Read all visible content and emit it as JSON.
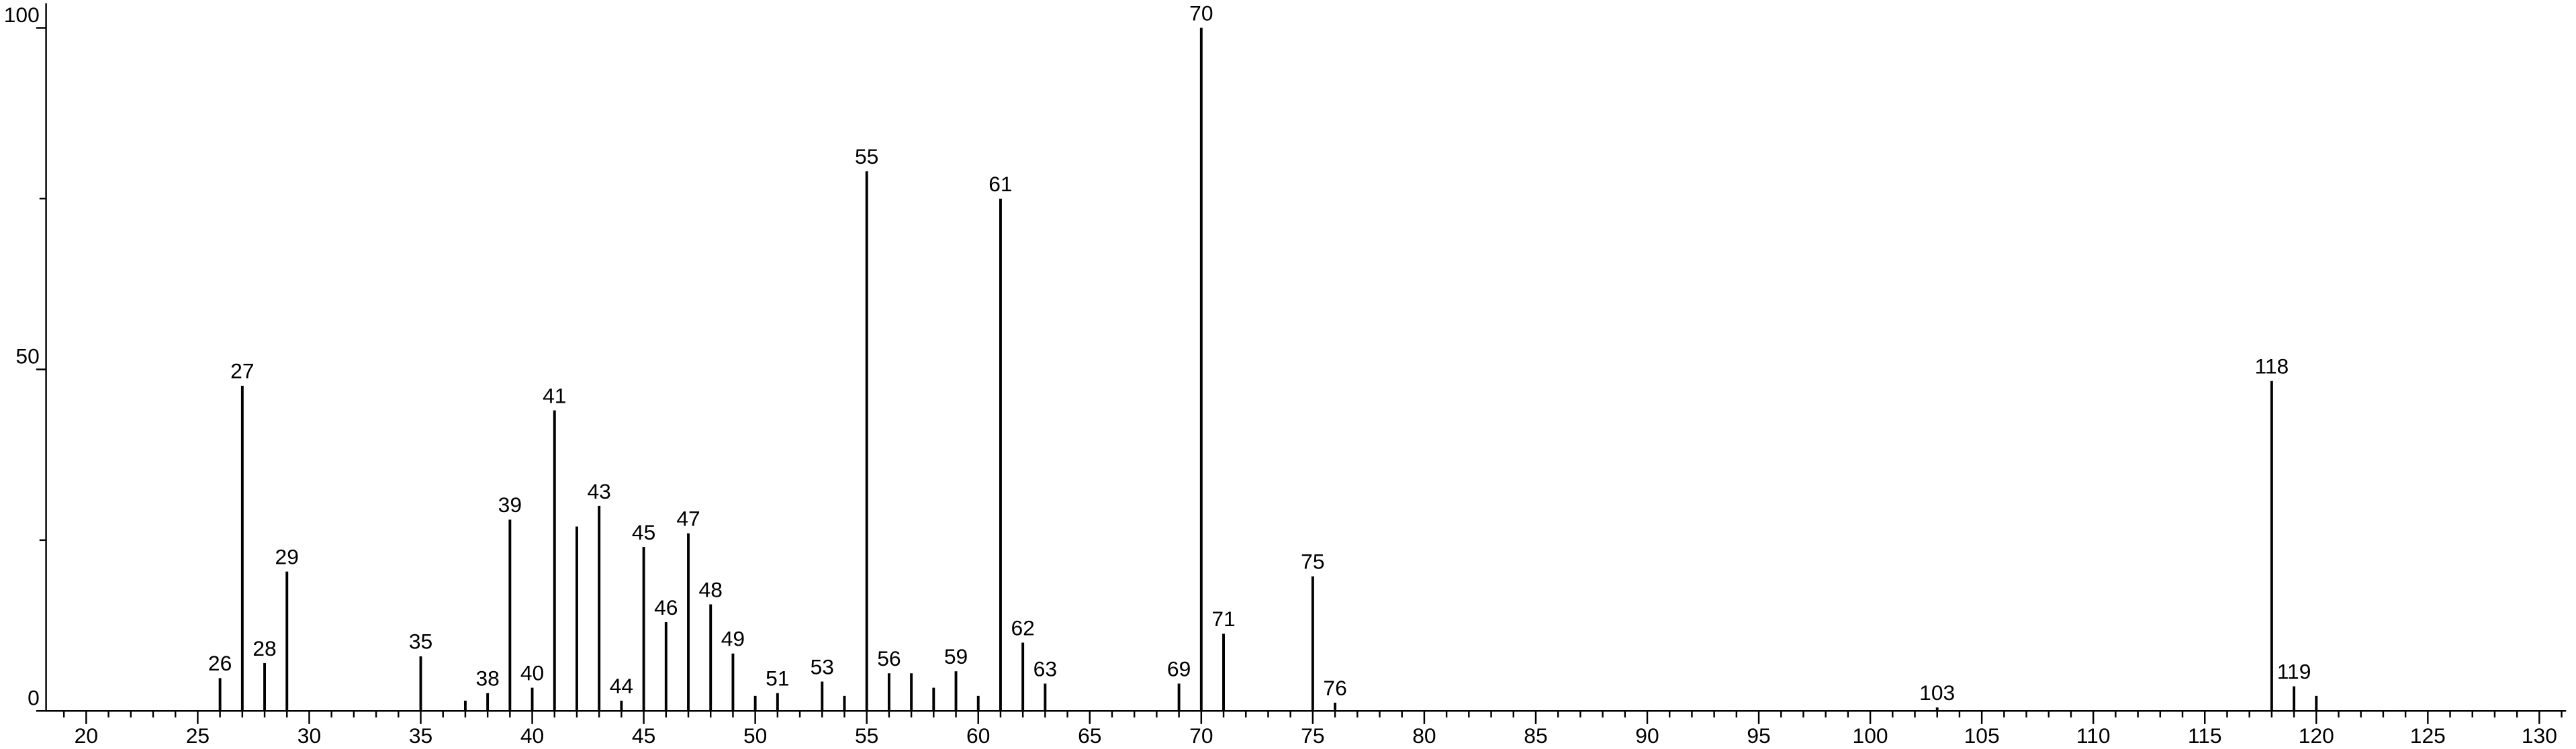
{
  "chart_data": {
    "type": "stem",
    "x": [
      26,
      27,
      28,
      29,
      35,
      37,
      38,
      39,
      40,
      41,
      42,
      43,
      44,
      45,
      46,
      47,
      48,
      49,
      50,
      51,
      53,
      54,
      55,
      56,
      57,
      58,
      59,
      60,
      61,
      62,
      63,
      69,
      70,
      71,
      75,
      76,
      103,
      118,
      119,
      120
    ],
    "values": [
      4.8,
      47.6,
      7,
      20.4,
      8,
      1.5,
      2.6,
      28,
      3.4,
      44,
      27,
      30,
      1.5,
      24,
      13,
      26,
      15.6,
      8.4,
      2.2,
      2.6,
      4.3,
      2.2,
      79,
      5.5,
      5.5,
      3.4,
      5.8,
      2.2,
      75,
      10,
      4,
      4,
      100,
      11.3,
      19.7,
      1.2,
      0.5,
      48.3,
      3.6,
      2.2
    ],
    "peak_labels": [
      "26",
      "27",
      "28",
      "29",
      "35",
      null,
      "38",
      "39",
      "40",
      "41",
      null,
      "43",
      "44",
      "45",
      "46",
      "47",
      "48",
      "49",
      null,
      "51",
      "53",
      null,
      "55",
      "56",
      null,
      null,
      "59",
      null,
      "61",
      "62",
      "63",
      "69",
      "70",
      "71",
      "75",
      "76",
      "103",
      "118",
      "119",
      null
    ],
    "color": "#000000",
    "xlim": [
      18.2,
      131.2
    ],
    "xticks": [
      20,
      25,
      30,
      35,
      40,
      45,
      50,
      55,
      60,
      65,
      70,
      75,
      80,
      85,
      90,
      95,
      100,
      105,
      110,
      115,
      120,
      125,
      130
    ],
    "xminorticks": [
      19,
      21,
      22,
      23,
      24,
      26,
      27,
      28,
      29,
      31,
      32,
      33,
      34,
      36,
      37,
      38,
      39,
      41,
      42,
      43,
      44,
      46,
      47,
      48,
      49,
      51,
      52,
      53,
      54,
      56,
      57,
      58,
      59,
      61,
      62,
      63,
      64,
      66,
      67,
      68,
      69,
      71,
      72,
      73,
      74,
      76,
      77,
      78,
      79,
      81,
      82,
      83,
      84,
      86,
      87,
      88,
      89,
      91,
      92,
      93,
      94,
      96,
      97,
      98,
      99,
      101,
      102,
      103,
      104,
      106,
      107,
      108,
      109,
      111,
      112,
      113,
      114,
      116,
      117,
      118,
      119,
      121,
      122,
      123,
      124,
      126,
      127,
      128,
      129,
      131
    ],
    "ylim": [
      0,
      103.6
    ],
    "yticks": [
      0,
      50,
      100
    ],
    "yminorticks": [
      25,
      75
    ]
  }
}
